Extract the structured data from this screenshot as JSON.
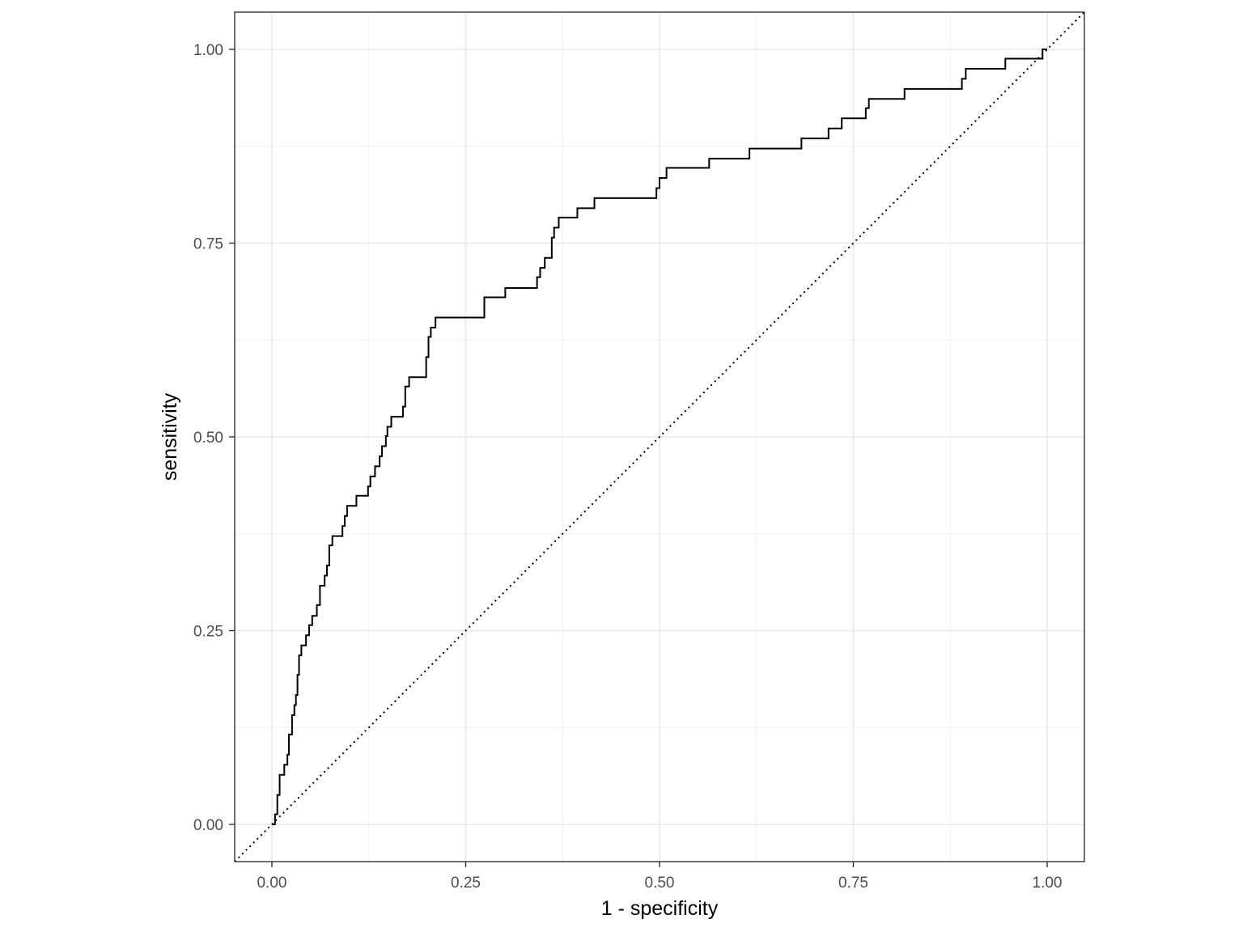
{
  "chart_data": {
    "type": "line",
    "title": "",
    "xlabel": "1 - specificity",
    "ylabel": "sensitivity",
    "xlim": [
      -0.048,
      1.048
    ],
    "ylim": [
      -0.048,
      1.048
    ],
    "x_ticks": [
      0,
      0.25,
      0.5,
      0.75,
      1
    ],
    "x_tick_labels": [
      "0.00",
      "0.25",
      "0.50",
      "0.75",
      "1.00"
    ],
    "y_ticks": [
      0,
      0.25,
      0.5,
      0.75,
      1
    ],
    "y_tick_labels": [
      "0.00",
      "0.25",
      "0.50",
      "0.75",
      "1.00"
    ],
    "grid": true,
    "legend": "none",
    "reference_line": {
      "style": "dotted",
      "from": [
        -0.048,
        -0.048
      ],
      "to": [
        1.048,
        1.048
      ]
    },
    "series": [
      {
        "style": "step",
        "color": "#000000",
        "points": [
          [
            0.0,
            0.0
          ],
          [
            0.004,
            0.0
          ],
          [
            0.004,
            0.013
          ],
          [
            0.007,
            0.013
          ],
          [
            0.007,
            0.038
          ],
          [
            0.01,
            0.038
          ],
          [
            0.01,
            0.064
          ],
          [
            0.016,
            0.064
          ],
          [
            0.016,
            0.077
          ],
          [
            0.02,
            0.077
          ],
          [
            0.02,
            0.09
          ],
          [
            0.022,
            0.09
          ],
          [
            0.022,
            0.116
          ],
          [
            0.026,
            0.116
          ],
          [
            0.026,
            0.141
          ],
          [
            0.029,
            0.141
          ],
          [
            0.029,
            0.154
          ],
          [
            0.031,
            0.154
          ],
          [
            0.031,
            0.167
          ],
          [
            0.033,
            0.167
          ],
          [
            0.033,
            0.193
          ],
          [
            0.035,
            0.193
          ],
          [
            0.035,
            0.218
          ],
          [
            0.038,
            0.218
          ],
          [
            0.038,
            0.231
          ],
          [
            0.044,
            0.231
          ],
          [
            0.044,
            0.244
          ],
          [
            0.048,
            0.244
          ],
          [
            0.048,
            0.257
          ],
          [
            0.052,
            0.257
          ],
          [
            0.052,
            0.269
          ],
          [
            0.058,
            0.269
          ],
          [
            0.058,
            0.283
          ],
          [
            0.062,
            0.283
          ],
          [
            0.062,
            0.308
          ],
          [
            0.068,
            0.308
          ],
          [
            0.068,
            0.321
          ],
          [
            0.071,
            0.321
          ],
          [
            0.071,
            0.334
          ],
          [
            0.074,
            0.334
          ],
          [
            0.074,
            0.36
          ],
          [
            0.078,
            0.36
          ],
          [
            0.078,
            0.372
          ],
          [
            0.091,
            0.372
          ],
          [
            0.091,
            0.385
          ],
          [
            0.094,
            0.385
          ],
          [
            0.094,
            0.398
          ],
          [
            0.097,
            0.398
          ],
          [
            0.097,
            0.411
          ],
          [
            0.109,
            0.411
          ],
          [
            0.109,
            0.424
          ],
          [
            0.124,
            0.424
          ],
          [
            0.124,
            0.436
          ],
          [
            0.127,
            0.436
          ],
          [
            0.127,
            0.449
          ],
          [
            0.133,
            0.449
          ],
          [
            0.133,
            0.462
          ],
          [
            0.139,
            0.462
          ],
          [
            0.139,
            0.475
          ],
          [
            0.142,
            0.475
          ],
          [
            0.142,
            0.488
          ],
          [
            0.147,
            0.488
          ],
          [
            0.147,
            0.501
          ],
          [
            0.149,
            0.501
          ],
          [
            0.149,
            0.513
          ],
          [
            0.154,
            0.513
          ],
          [
            0.154,
            0.526
          ],
          [
            0.169,
            0.526
          ],
          [
            0.169,
            0.539
          ],
          [
            0.172,
            0.539
          ],
          [
            0.172,
            0.565
          ],
          [
            0.177,
            0.565
          ],
          [
            0.177,
            0.577
          ],
          [
            0.199,
            0.577
          ],
          [
            0.199,
            0.603
          ],
          [
            0.202,
            0.603
          ],
          [
            0.202,
            0.629
          ],
          [
            0.205,
            0.629
          ],
          [
            0.205,
            0.641
          ],
          [
            0.211,
            0.641
          ],
          [
            0.211,
            0.654
          ],
          [
            0.274,
            0.654
          ],
          [
            0.274,
            0.68
          ],
          [
            0.301,
            0.68
          ],
          [
            0.301,
            0.692
          ],
          [
            0.342,
            0.692
          ],
          [
            0.342,
            0.706
          ],
          [
            0.346,
            0.706
          ],
          [
            0.346,
            0.718
          ],
          [
            0.352,
            0.718
          ],
          [
            0.352,
            0.731
          ],
          [
            0.361,
            0.731
          ],
          [
            0.361,
            0.757
          ],
          [
            0.364,
            0.757
          ],
          [
            0.364,
            0.77
          ],
          [
            0.37,
            0.77
          ],
          [
            0.37,
            0.783
          ],
          [
            0.394,
            0.783
          ],
          [
            0.394,
            0.795
          ],
          [
            0.416,
            0.795
          ],
          [
            0.416,
            0.808
          ],
          [
            0.496,
            0.808
          ],
          [
            0.496,
            0.821
          ],
          [
            0.5,
            0.821
          ],
          [
            0.5,
            0.834
          ],
          [
            0.509,
            0.834
          ],
          [
            0.509,
            0.847
          ],
          [
            0.564,
            0.847
          ],
          [
            0.564,
            0.859
          ],
          [
            0.616,
            0.859
          ],
          [
            0.616,
            0.872
          ],
          [
            0.683,
            0.872
          ],
          [
            0.683,
            0.885
          ],
          [
            0.718,
            0.885
          ],
          [
            0.718,
            0.898
          ],
          [
            0.735,
            0.898
          ],
          [
            0.735,
            0.911
          ],
          [
            0.766,
            0.911
          ],
          [
            0.766,
            0.924
          ],
          [
            0.77,
            0.924
          ],
          [
            0.77,
            0.936
          ],
          [
            0.816,
            0.936
          ],
          [
            0.816,
            0.949
          ],
          [
            0.89,
            0.949
          ],
          [
            0.89,
            0.962
          ],
          [
            0.895,
            0.962
          ],
          [
            0.895,
            0.975
          ],
          [
            0.946,
            0.975
          ],
          [
            0.946,
            0.988
          ],
          [
            0.994,
            0.988
          ],
          [
            0.994,
            1.0
          ],
          [
            1.0,
            1.0
          ]
        ]
      }
    ]
  }
}
